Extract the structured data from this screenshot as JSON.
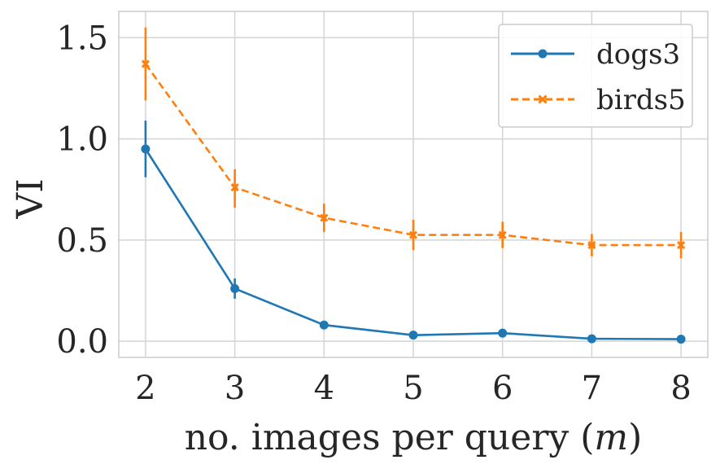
{
  "chart_data": {
    "type": "line",
    "xlabel": "no. images per query (",
    "xlabel_var": "m",
    "xlabel_end": ")",
    "ylabel": "VI",
    "x": [
      2,
      3,
      4,
      5,
      6,
      7,
      8
    ],
    "xlim": [
      1.7,
      8.3
    ],
    "ylim": [
      -0.08,
      1.63
    ],
    "xticks": [
      "2",
      "3",
      "4",
      "5",
      "6",
      "7",
      "8"
    ],
    "yticks": [
      {
        "value": 0.0,
        "label": "0.0"
      },
      {
        "value": 0.5,
        "label": "0.5"
      },
      {
        "value": 1.0,
        "label": "1.0"
      },
      {
        "value": 1.5,
        "label": "1.5"
      }
    ],
    "grid": true,
    "legend_position": "top-right",
    "series": [
      {
        "name": "dogs3",
        "color": "#1f77b4",
        "marker": "circle",
        "linestyle": "solid",
        "values": [
          0.95,
          0.26,
          0.08,
          0.03,
          0.04,
          0.012,
          0.01
        ],
        "err_low": [
          0.81,
          0.21,
          0.06,
          0.01,
          0.02,
          0.004,
          0.003
        ],
        "err_high": [
          1.09,
          0.31,
          0.1,
          0.05,
          0.06,
          0.02,
          0.017
        ]
      },
      {
        "name": "birds5",
        "color": "#ff7f0e",
        "marker": "x",
        "linestyle": "dashed",
        "values": [
          1.37,
          0.76,
          0.61,
          0.525,
          0.525,
          0.475,
          0.475
        ],
        "err_low": [
          1.19,
          0.66,
          0.54,
          0.45,
          0.46,
          0.42,
          0.41
        ],
        "err_high": [
          1.55,
          0.85,
          0.68,
          0.6,
          0.59,
          0.53,
          0.54
        ]
      }
    ]
  }
}
